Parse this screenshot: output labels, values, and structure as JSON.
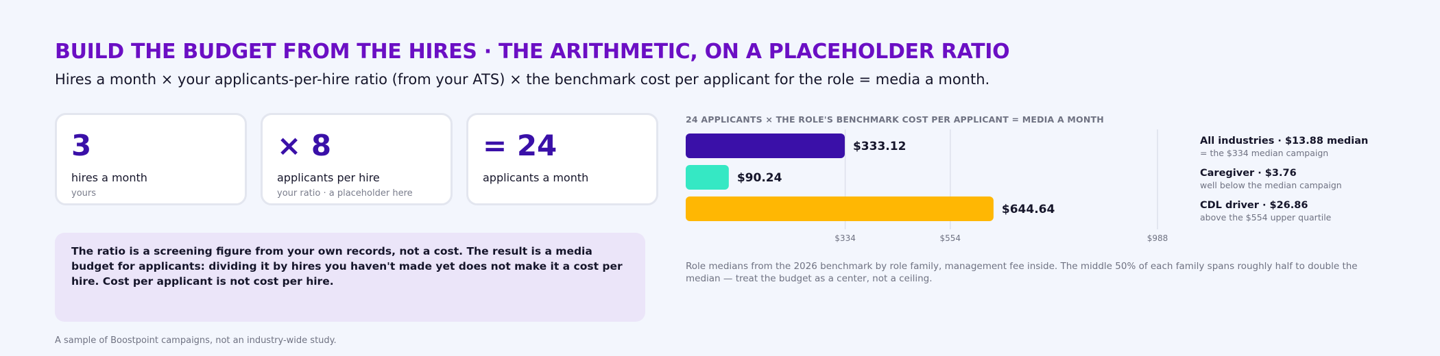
{
  "header": {
    "title": "BUILD THE BUDGET FROM THE HIRES · THE ARITHMETIC, ON A PLACEHOLDER RATIO",
    "subtitle": "Hires a month × your applicants-per-hire ratio (from your ATS) × the benchmark cost per applicant for the role = media a month."
  },
  "cards": [
    {
      "value": "3",
      "label": "hires a month",
      "sub": "yours"
    },
    {
      "value": "× 8",
      "label": "applicants per hire",
      "sub": "your ratio · a placeholder here"
    },
    {
      "value": "= 24",
      "label": "applicants a month",
      "sub": ""
    }
  ],
  "note": "The ratio is a screening figure from your own records, not a cost. The result is a media budget for applicants: dividing it by hires you haven't made yet does not make it a cost per hire. Cost per applicant is not cost per hire.",
  "footer": "A sample of Boostpoint campaigns, not an industry-wide study.",
  "chart_data": {
    "type": "bar",
    "orientation": "horizontal",
    "title": "24 APPLICANTS × THE ROLE'S BENCHMARK COST PER APPLICANT = MEDIA A MONTH",
    "categories": [
      "All industries · $13.88 median",
      "Caregiver · $3.76",
      "CDL driver · $26.86"
    ],
    "values": [
      333.12,
      90.24,
      644.64
    ],
    "value_labels": [
      "$333.12",
      "$90.24",
      "$644.64"
    ],
    "colors": [
      "#3a10a8",
      "#35e8c4",
      "#ffb703"
    ],
    "reference_lines": [
      {
        "value": 334,
        "label": "$334"
      },
      {
        "value": 554,
        "label": "$554"
      },
      {
        "value": 988,
        "label": "$988"
      }
    ],
    "xlim": [
      0,
      988
    ],
    "grid": false,
    "legend_placement": "right",
    "legend": [
      {
        "title": "All industries · $13.88 median",
        "sub": "= the $334 median campaign"
      },
      {
        "title": "Caregiver · $3.76",
        "sub": "well below the median campaign"
      },
      {
        "title": "CDL driver · $26.86",
        "sub": "above the $554 upper quartile"
      }
    ],
    "note": "Role medians from the 2026 benchmark by role family, management fee inside. The middle 50% of each family spans roughly half to double the median — treat the budget as a center, not a ceiling."
  }
}
